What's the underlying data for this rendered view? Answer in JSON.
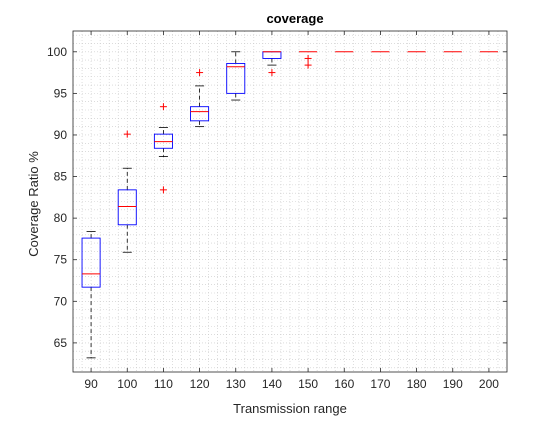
{
  "chart_data": {
    "type": "box",
    "title": "coverage",
    "xlabel": "Transmission range",
    "ylabel": "Coverage Ratio %",
    "categories": [
      "90",
      "100",
      "110",
      "120",
      "130",
      "140",
      "150",
      "160",
      "170",
      "180",
      "190",
      "200"
    ],
    "yticks": [
      65,
      70,
      75,
      80,
      85,
      90,
      95,
      100
    ],
    "ylim": [
      61.5,
      102.5
    ],
    "grid": "minor dotted",
    "colors": {
      "box": "#0000ff",
      "median": "#ff0000",
      "whisker": "#000000",
      "outlier": "#ff0000"
    },
    "boxes": [
      {
        "category": "90",
        "whisker_low": 63.2,
        "q1": 71.7,
        "median": 73.3,
        "q3": 77.6,
        "whisker_high": 78.4,
        "outliers": []
      },
      {
        "category": "100",
        "whisker_low": 75.9,
        "q1": 79.2,
        "median": 81.4,
        "q3": 83.4,
        "whisker_high": 86.0,
        "outliers": [
          90.1
        ]
      },
      {
        "category": "110",
        "whisker_low": 87.4,
        "q1": 88.4,
        "median": 89.2,
        "q3": 90.1,
        "whisker_high": 90.9,
        "outliers": [
          93.4,
          83.4
        ]
      },
      {
        "category": "120",
        "whisker_low": 91.0,
        "q1": 91.7,
        "median": 92.8,
        "q3": 93.4,
        "whisker_high": 95.9,
        "outliers": [
          97.5
        ]
      },
      {
        "category": "130",
        "whisker_low": 94.2,
        "q1": 95.0,
        "median": 98.2,
        "q3": 98.6,
        "whisker_high": 100.0,
        "outliers": []
      },
      {
        "category": "140",
        "whisker_low": 98.4,
        "q1": 99.2,
        "median": 100.0,
        "q3": 100.0,
        "whisker_high": 100.0,
        "outliers": [
          97.5
        ]
      },
      {
        "category": "150",
        "whisker_low": 100.0,
        "q1": 100.0,
        "median": 100.0,
        "q3": 100.0,
        "whisker_high": 100.0,
        "outliers": [
          99.2,
          98.4
        ]
      },
      {
        "category": "160",
        "whisker_low": 100.0,
        "q1": 100.0,
        "median": 100.0,
        "q3": 100.0,
        "whisker_high": 100.0,
        "outliers": []
      },
      {
        "category": "170",
        "whisker_low": 100.0,
        "q1": 100.0,
        "median": 100.0,
        "q3": 100.0,
        "whisker_high": 100.0,
        "outliers": []
      },
      {
        "category": "180",
        "whisker_low": 100.0,
        "q1": 100.0,
        "median": 100.0,
        "q3": 100.0,
        "whisker_high": 100.0,
        "outliers": []
      },
      {
        "category": "190",
        "whisker_low": 100.0,
        "q1": 100.0,
        "median": 100.0,
        "q3": 100.0,
        "whisker_high": 100.0,
        "outliers": []
      },
      {
        "category": "200",
        "whisker_low": 100.0,
        "q1": 100.0,
        "median": 100.0,
        "q3": 100.0,
        "whisker_high": 100.0,
        "outliers": []
      }
    ]
  }
}
